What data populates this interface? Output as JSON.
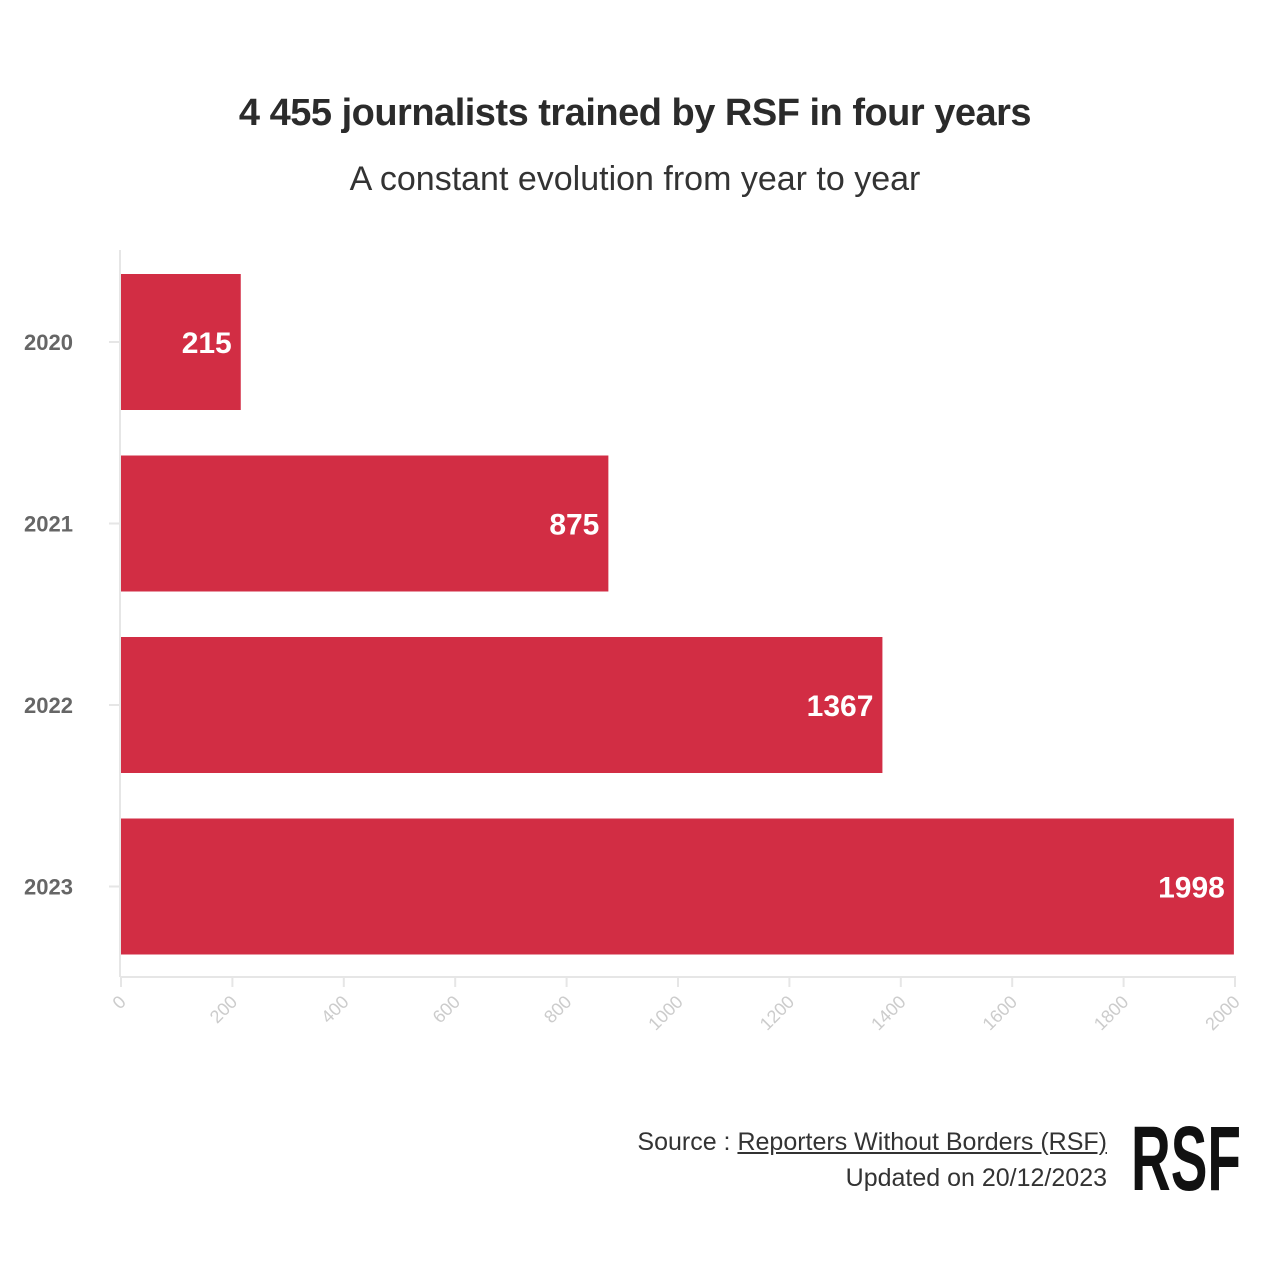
{
  "header": {
    "title": "4 455 journalists trained by RSF in four years",
    "subtitle": "A constant evolution from year to year"
  },
  "chart_data": {
    "type": "bar",
    "orientation": "horizontal",
    "categories": [
      "2020",
      "2021",
      "2022",
      "2023"
    ],
    "values": [
      215,
      875,
      1367,
      1998
    ],
    "data_labels": [
      "215",
      "875",
      "1367",
      "1998"
    ],
    "x_ticks": [
      "0",
      "200",
      "400",
      "600",
      "800",
      "1000",
      "1200",
      "1400",
      "1600",
      "1800",
      "2000"
    ],
    "xlim": [
      0,
      2000
    ],
    "grid": false,
    "legend": "none",
    "bar_color": "#d22d44"
  },
  "footer": {
    "source_prefix": "Source : ",
    "source_link": "Reporters Without Borders (RSF)",
    "updated": "Updated on 20/12/2023"
  },
  "logo": {
    "text": "RSF",
    "icon": "rsf-logo"
  },
  "colors": {
    "bar": "#d22d44",
    "axis": "#e6e6e6",
    "tick_label": "#cccccc",
    "cat_label": "#666666"
  }
}
